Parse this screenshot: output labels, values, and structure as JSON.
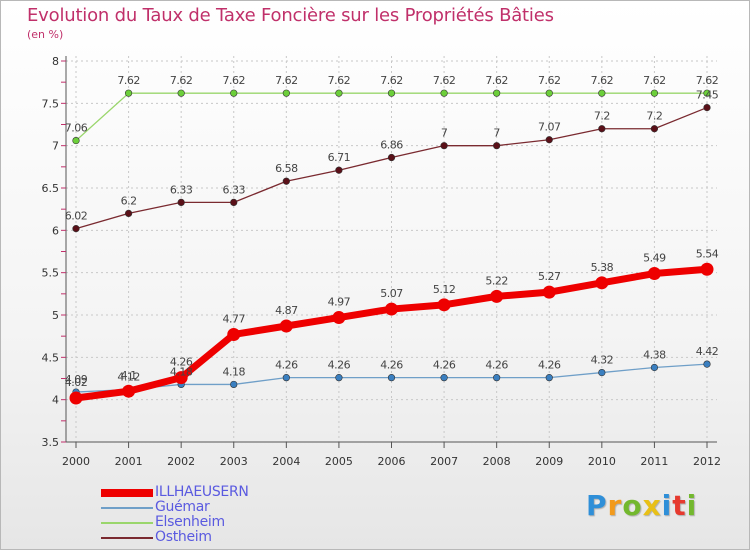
{
  "chart_data": {
    "type": "line",
    "title": "Evolution du Taux de Taxe Foncière sur les Propriétés Bâties",
    "unit_label": "(en %)",
    "xlabel": "",
    "ylabel": "",
    "ylim": [
      3.5,
      8
    ],
    "y_ticks": [
      "3.5",
      "4",
      "4.5",
      "5",
      "5.5",
      "6",
      "6.5",
      "7",
      "7.5",
      "8"
    ],
    "categories": [
      "2000",
      "2001",
      "2002",
      "2003",
      "2004",
      "2005",
      "2006",
      "2007",
      "2008",
      "2009",
      "2010",
      "2011",
      "2012"
    ],
    "grid": true,
    "legend_position": "bottom-left",
    "series": [
      {
        "name": "ILLHAEUSERN",
        "color": "#ee0000",
        "marker_color": "#ee0000",
        "values": [
          4.02,
          4.1,
          4.26,
          4.77,
          4.87,
          4.97,
          5.07,
          5.12,
          5.22,
          5.27,
          5.38,
          5.49,
          5.54
        ],
        "labels": [
          "4.02",
          "4.1",
          "4.26",
          "4.77",
          "4.87",
          "4.97",
          "5.07",
          "5.12",
          "5.22",
          "5.27",
          "5.38",
          "5.49",
          "5.54"
        ]
      },
      {
        "name": "Guémar",
        "color": "#6f9fc8",
        "marker_color": "#3a7fc0",
        "values": [
          4.09,
          4.12,
          4.18,
          4.18,
          4.26,
          4.26,
          4.26,
          4.26,
          4.26,
          4.26,
          4.32,
          4.38,
          4.42
        ],
        "labels": [
          "4.09",
          "4.12",
          "4.18",
          "4.18",
          "4.26",
          "4.26",
          "4.26",
          "4.26",
          "4.26",
          "4.26",
          "4.32",
          "4.38",
          "4.42"
        ]
      },
      {
        "name": "Elsenheim",
        "color": "#9ad66c",
        "marker_color": "#6ccf3a",
        "values": [
          7.06,
          7.62,
          7.62,
          7.62,
          7.62,
          7.62,
          7.62,
          7.62,
          7.62,
          7.62,
          7.62,
          7.62,
          7.62
        ],
        "labels": [
          "7.06",
          "7.62",
          "7.62",
          "7.62",
          "7.62",
          "7.62",
          "7.62",
          "7.62",
          "7.62",
          "7.62",
          "7.62",
          "7.62",
          "7.62"
        ]
      },
      {
        "name": "Ostheim",
        "color": "#7a2a30",
        "marker_color": "#5a1018",
        "values": [
          6.02,
          6.2,
          6.33,
          6.33,
          6.58,
          6.71,
          6.86,
          7.0,
          7.0,
          7.07,
          7.2,
          7.2,
          7.45
        ],
        "labels": [
          "6.02",
          "6.2",
          "6.33",
          "6.33",
          "6.58",
          "6.71",
          "6.86",
          "7",
          "7",
          "7.07",
          "7.2",
          "7.2",
          "7.45"
        ]
      }
    ]
  },
  "legend": {
    "items": [
      {
        "name": "ILLHAEUSERN",
        "color": "#ee0000"
      },
      {
        "name": "Guémar",
        "color": "#6f9fc8"
      },
      {
        "name": "Elsenheim",
        "color": "#9ad66c"
      },
      {
        "name": "Ostheim",
        "color": "#7a2a30"
      }
    ]
  },
  "brand": {
    "logo_text": "Proxiti",
    "letters": [
      "P",
      "r",
      "o",
      "x",
      "i",
      "t",
      "i"
    ]
  }
}
